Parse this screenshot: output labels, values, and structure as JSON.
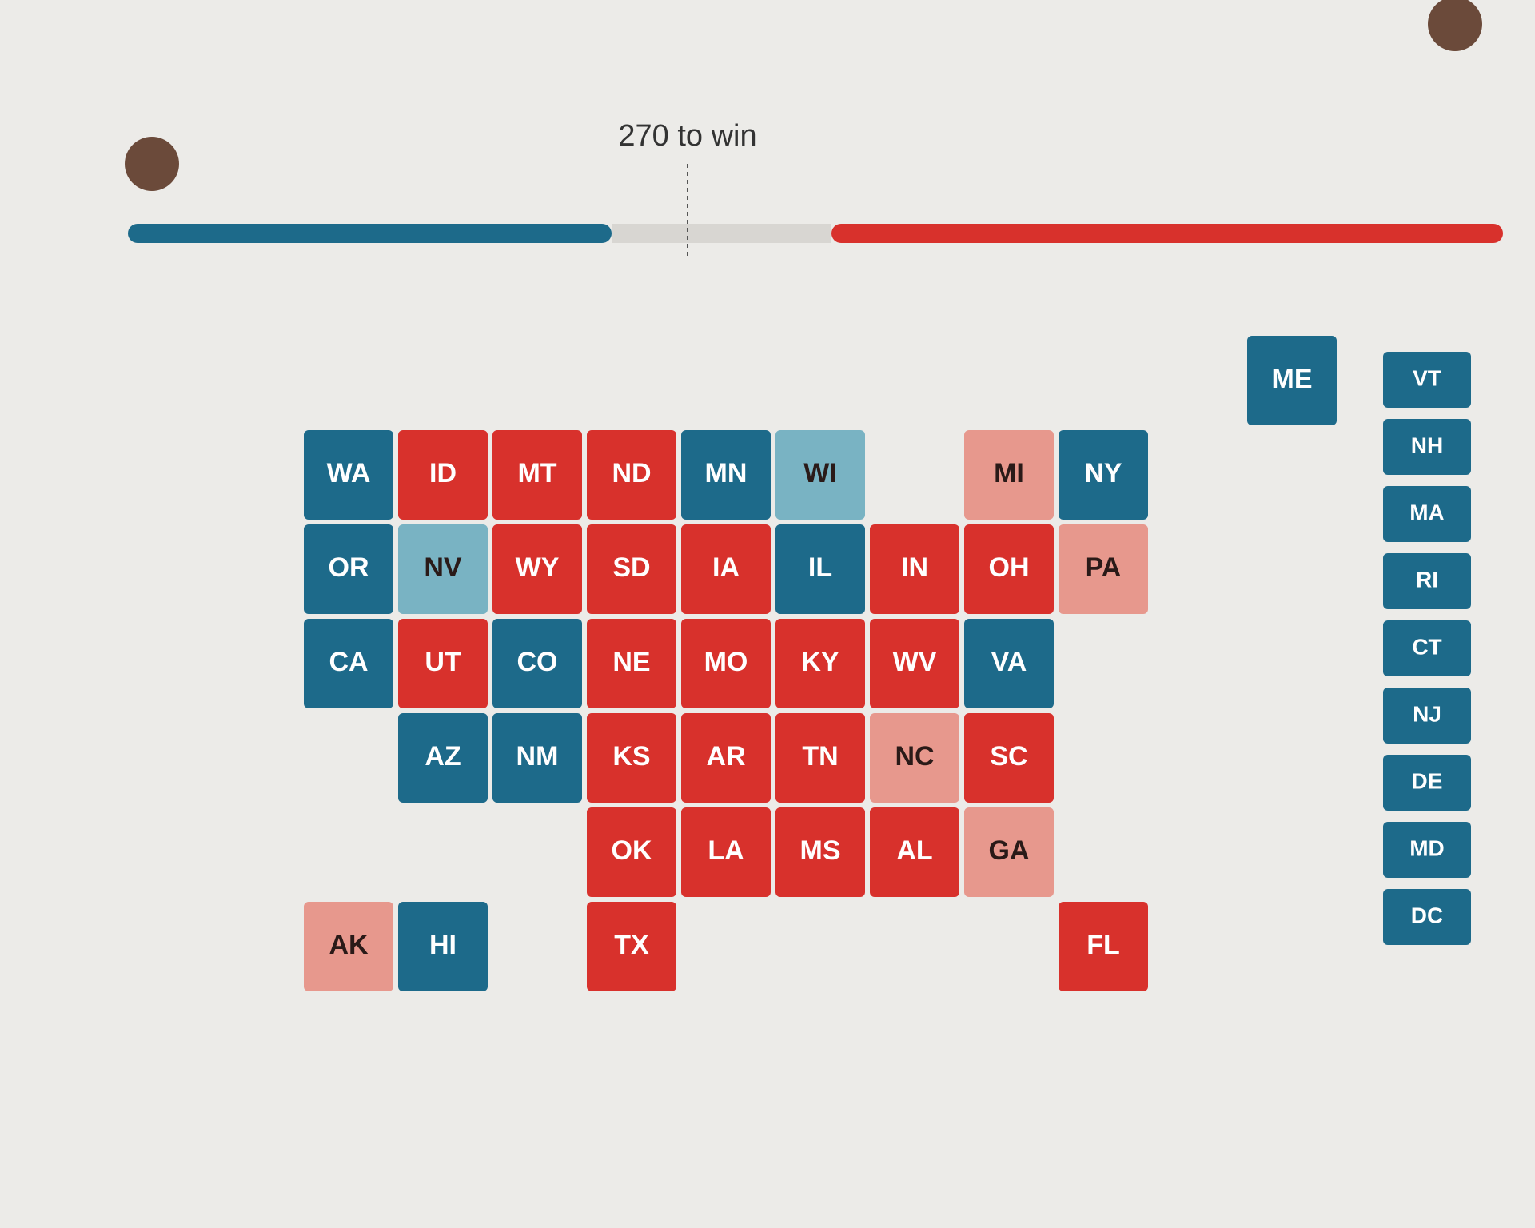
{
  "header": {
    "threshold_label": "270 to win"
  },
  "colors": {
    "dem": "#1d6a8a",
    "lean-dem": "#79b3c3",
    "rep": "#d8312c",
    "lean-rep": "#e7988d"
  },
  "states": [
    {
      "abbr": "ME",
      "status": "dem"
    },
    {
      "abbr": "WA",
      "status": "dem"
    },
    {
      "abbr": "ID",
      "status": "rep"
    },
    {
      "abbr": "MT",
      "status": "rep"
    },
    {
      "abbr": "ND",
      "status": "rep"
    },
    {
      "abbr": "MN",
      "status": "dem"
    },
    {
      "abbr": "WI",
      "status": "lean-dem"
    },
    {
      "abbr": "MI",
      "status": "lean-rep"
    },
    {
      "abbr": "NY",
      "status": "dem"
    },
    {
      "abbr": "OR",
      "status": "dem"
    },
    {
      "abbr": "NV",
      "status": "lean-dem"
    },
    {
      "abbr": "WY",
      "status": "rep"
    },
    {
      "abbr": "SD",
      "status": "rep"
    },
    {
      "abbr": "IA",
      "status": "rep"
    },
    {
      "abbr": "IL",
      "status": "dem"
    },
    {
      "abbr": "IN",
      "status": "rep"
    },
    {
      "abbr": "OH",
      "status": "rep"
    },
    {
      "abbr": "PA",
      "status": "lean-rep"
    },
    {
      "abbr": "CA",
      "status": "dem"
    },
    {
      "abbr": "UT",
      "status": "rep"
    },
    {
      "abbr": "CO",
      "status": "dem"
    },
    {
      "abbr": "NE",
      "status": "rep"
    },
    {
      "abbr": "MO",
      "status": "rep"
    },
    {
      "abbr": "KY",
      "status": "rep"
    },
    {
      "abbr": "WV",
      "status": "rep"
    },
    {
      "abbr": "VA",
      "status": "dem"
    },
    {
      "abbr": "AZ",
      "status": "dem"
    },
    {
      "abbr": "NM",
      "status": "dem"
    },
    {
      "abbr": "KS",
      "status": "rep"
    },
    {
      "abbr": "AR",
      "status": "rep"
    },
    {
      "abbr": "TN",
      "status": "rep"
    },
    {
      "abbr": "NC",
      "status": "lean-rep"
    },
    {
      "abbr": "SC",
      "status": "rep"
    },
    {
      "abbr": "OK",
      "status": "rep"
    },
    {
      "abbr": "LA",
      "status": "rep"
    },
    {
      "abbr": "MS",
      "status": "rep"
    },
    {
      "abbr": "AL",
      "status": "rep"
    },
    {
      "abbr": "GA",
      "status": "lean-rep"
    },
    {
      "abbr": "AK",
      "status": "lean-rep"
    },
    {
      "abbr": "HI",
      "status": "dem"
    },
    {
      "abbr": "TX",
      "status": "rep"
    },
    {
      "abbr": "FL",
      "status": "rep"
    }
  ],
  "small_states": [
    {
      "abbr": "VT",
      "status": "dem"
    },
    {
      "abbr": "NH",
      "status": "dem"
    },
    {
      "abbr": "MA",
      "status": "dem"
    },
    {
      "abbr": "RI",
      "status": "dem"
    },
    {
      "abbr": "CT",
      "status": "dem"
    },
    {
      "abbr": "NJ",
      "status": "dem"
    },
    {
      "abbr": "DE",
      "status": "dem"
    },
    {
      "abbr": "MD",
      "status": "dem"
    },
    {
      "abbr": "DC",
      "status": "dem"
    }
  ]
}
